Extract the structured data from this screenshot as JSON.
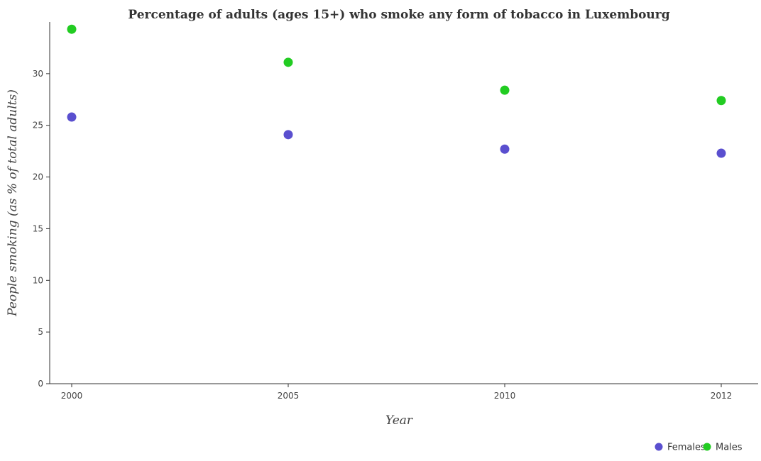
{
  "chart_data": {
    "type": "scatter",
    "title": "Percentage of adults (ages 15+) who smoke any form of tobacco in Luxembourg",
    "xlabel": "Year",
    "ylabel": "People smoking (as % of total adults)",
    "categories": [
      "2000",
      "2005",
      "2010",
      "2012"
    ],
    "y_ticks": [
      "0",
      "5",
      "10",
      "15",
      "20",
      "25",
      "30"
    ],
    "ylim": [
      0,
      35
    ],
    "grid": false,
    "legend_position": "bottom-right",
    "series": [
      {
        "name": "Females",
        "color": "#5a4fcf",
        "values": [
          25.8,
          24.1,
          22.7,
          22.3
        ]
      },
      {
        "name": "Males",
        "color": "#22cc22",
        "values": [
          34.3,
          31.1,
          28.4,
          27.4
        ]
      }
    ]
  }
}
